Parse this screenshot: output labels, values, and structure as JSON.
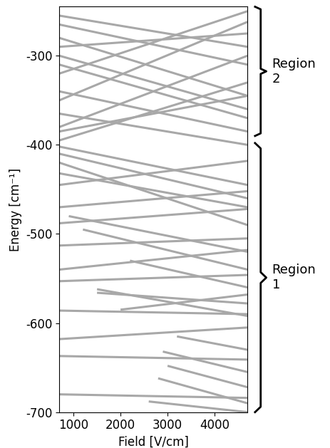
{
  "chart_data": {
    "type": "line",
    "x_label": "Field [V/cm]",
    "y_label": "Energy [cm⁻¹]",
    "xlim": [
      700,
      4700
    ],
    "xticks": [
      1000,
      2000,
      3000,
      4000
    ],
    "ylim": [
      -700,
      -245
    ],
    "yticks": [
      -300,
      -400,
      -500,
      -600,
      -700
    ],
    "grid": false,
    "color": "#a8a8a8",
    "regions": [
      {
        "label": "Region 2",
        "range": [
          -390,
          -245
        ]
      },
      {
        "label": "Region 1",
        "range": [
          -700,
          -398
        ]
      }
    ],
    "series": [
      {
        "x": [
          700,
          4700
        ],
        "values": [
          -680,
          -684
        ]
      },
      {
        "x": [
          2600,
          4700
        ],
        "values": [
          -688,
          -700
        ]
      },
      {
        "x": [
          2800,
          4700
        ],
        "values": [
          -662,
          -690
        ]
      },
      {
        "x": [
          3000,
          4700
        ],
        "values": [
          -648,
          -672
        ]
      },
      {
        "x": [
          700,
          4700
        ],
        "values": [
          -637,
          -641
        ]
      },
      {
        "x": [
          2900,
          4700
        ],
        "values": [
          -632,
          -655
        ]
      },
      {
        "x": [
          700,
          4700
        ],
        "values": [
          -618,
          -605
        ]
      },
      {
        "x": [
          3200,
          4700
        ],
        "values": [
          -615,
          -630
        ]
      },
      {
        "x": [
          700,
          4700
        ],
        "values": [
          -586,
          -590
        ]
      },
      {
        "x": [
          1500,
          4700
        ],
        "values": [
          -562,
          -592
        ]
      },
      {
        "x": [
          1500,
          4700
        ],
        "values": [
          -566,
          -578
        ]
      },
      {
        "x": [
          2000,
          4700
        ],
        "values": [
          -585,
          -568
        ]
      },
      {
        "x": [
          700,
          4700
        ],
        "values": [
          -553,
          -546
        ]
      },
      {
        "x": [
          700,
          4700
        ],
        "values": [
          -540,
          -518
        ]
      },
      {
        "x": [
          2200,
          4700
        ],
        "values": [
          -530,
          -560
        ]
      },
      {
        "x": [
          700,
          4700
        ],
        "values": [
          -513,
          -505
        ]
      },
      {
        "x": [
          700,
          4700
        ],
        "values": [
          -488,
          -472
        ]
      },
      {
        "x": [
          1200,
          4700
        ],
        "values": [
          -495,
          -540
        ]
      },
      {
        "x": [
          700,
          4700
        ],
        "values": [
          -470,
          -452
        ]
      },
      {
        "x": [
          900,
          4700
        ],
        "values": [
          -480,
          -520
        ]
      },
      {
        "x": [
          700,
          4700
        ],
        "values": [
          -445,
          -418
        ]
      },
      {
        "x": [
          700,
          4700
        ],
        "values": [
          -432,
          -470
        ]
      },
      {
        "x": [
          700,
          4700
        ],
        "values": [
          -420,
          -490
        ]
      },
      {
        "x": [
          700,
          4700
        ],
        "values": [
          -410,
          -460
        ]
      },
      {
        "x": [
          700,
          4700
        ],
        "values": [
          -402,
          -445
        ]
      },
      {
        "x": [
          700,
          4700
        ],
        "values": [
          -395,
          -330
        ]
      },
      {
        "x": [
          700,
          4700
        ],
        "values": [
          -385,
          -345
        ]
      },
      {
        "x": [
          700,
          4700
        ],
        "values": [
          -380,
          -300
        ]
      },
      {
        "x": [
          700,
          4700
        ],
        "values": [
          -365,
          -400
        ]
      },
      {
        "x": [
          700,
          4700
        ],
        "values": [
          -350,
          -262
        ]
      },
      {
        "x": [
          700,
          4700
        ],
        "values": [
          -340,
          -385
        ]
      },
      {
        "x": [
          700,
          4700
        ],
        "values": [
          -320,
          -250
        ]
      },
      {
        "x": [
          700,
          4700
        ],
        "values": [
          -310,
          -370
        ]
      },
      {
        "x": [
          700,
          4700
        ],
        "values": [
          -300,
          -360
        ]
      },
      {
        "x": [
          700,
          4700
        ],
        "values": [
          -290,
          -275
        ]
      },
      {
        "x": [
          700,
          4700
        ],
        "values": [
          -280,
          -345
        ]
      },
      {
        "x": [
          700,
          4700
        ],
        "values": [
          -265,
          -310
        ]
      },
      {
        "x": [
          700,
          4700
        ],
        "values": [
          -255,
          -290
        ]
      }
    ]
  }
}
